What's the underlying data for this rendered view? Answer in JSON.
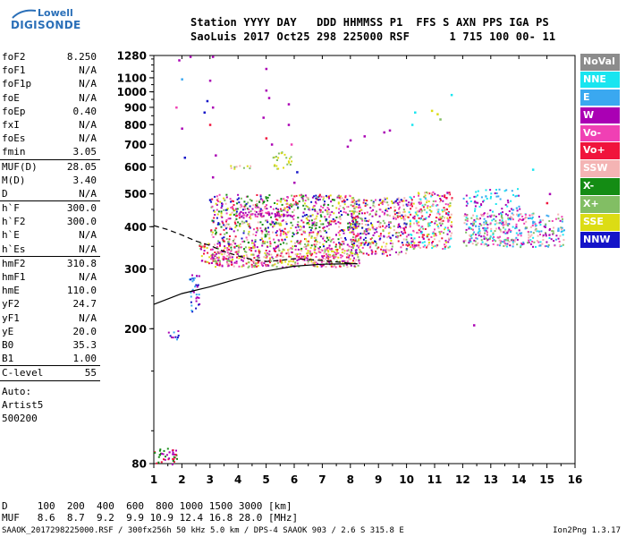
{
  "logo": {
    "line1": "Lowell",
    "line2": "DIGISONDE"
  },
  "header": {
    "line1": "Station YYYY DAY   DDD HHMMSS P1  FFS S AXN PPS IGA PS",
    "line2": "SaoLuis 2017 Oct25 298 225000 RSF      1 715 100 00- 11"
  },
  "params": [
    {
      "k": "foF2",
      "v": "8.250"
    },
    {
      "k": "foF1",
      "v": "N/A"
    },
    {
      "k": "foF1p",
      "v": "N/A"
    },
    {
      "k": "foE",
      "v": "N/A"
    },
    {
      "k": "foEp",
      "v": "0.40"
    },
    {
      "k": "fxI",
      "v": "N/A"
    },
    {
      "k": "foEs",
      "v": "N/A"
    },
    {
      "k": "fmin",
      "v": "3.05"
    },
    {
      "k": "MUF(D)",
      "v": "28.05",
      "sep": true
    },
    {
      "k": "M(D)",
      "v": "3.40"
    },
    {
      "k": "D",
      "v": "N/A"
    },
    {
      "k": "h`F",
      "v": "300.0",
      "sep": true
    },
    {
      "k": "h`F2",
      "v": "300.0"
    },
    {
      "k": "h`E",
      "v": "N/A"
    },
    {
      "k": "h`Es",
      "v": "N/A"
    },
    {
      "k": "hmF2",
      "v": "310.8",
      "sep": true
    },
    {
      "k": "hmF1",
      "v": "N/A"
    },
    {
      "k": "hmE",
      "v": "110.0"
    },
    {
      "k": "yF2",
      "v": "24.7"
    },
    {
      "k": "yF1",
      "v": "N/A"
    },
    {
      "k": "yE",
      "v": "20.0"
    },
    {
      "k": "B0",
      "v": "35.3"
    },
    {
      "k": "B1",
      "v": "1.00"
    },
    {
      "k": "C-level",
      "v": "55",
      "sep": true
    }
  ],
  "autoscaling": {
    "line1": "Auto:",
    "line2": "Artist5",
    "line3": "500200"
  },
  "legend": [
    {
      "label": "NoVal",
      "color": "#8c8c8c"
    },
    {
      "label": "NNE",
      "color": "#19e5f0"
    },
    {
      "label": "E",
      "color": "#3aa8f0"
    },
    {
      "label": "W",
      "color": "#aa00b4"
    },
    {
      "label": "Vo-",
      "color": "#f040b4"
    },
    {
      "label": "Vo+",
      "color": "#f0143c"
    },
    {
      "label": "SSW",
      "color": "#f4b4b4"
    },
    {
      "label": "X-",
      "color": "#148c14"
    },
    {
      "label": "X+",
      "color": "#82be64"
    },
    {
      "label": "SSE",
      "color": "#dcdc14"
    },
    {
      "label": "NNW",
      "color": "#1414c8"
    }
  ],
  "muf_table": {
    "d_row": "D     100  200  400  600  800 1000 1500 3000 [km]",
    "muf_row": "MUF   8.6  8.7  9.2  9.9 10.9 12.4 16.8 28.0 [MHz]"
  },
  "footer": {
    "left": "SAAOK_2017298225000.RSF / 300fx256h 50 kHz 5.0 km / DPS-4 SAAOK 903 / 2.6 S 315.8 E",
    "right": "Ion2Png 1.3.17"
  },
  "chart_data": {
    "type": "scatter",
    "title": "",
    "xlabel": "",
    "ylabel": "",
    "xlim": [
      1,
      16
    ],
    "ylim": [
      80,
      1280
    ],
    "y_scale": "log",
    "x_ticks": [
      1,
      2,
      3,
      4,
      5,
      6,
      7,
      8,
      9,
      10,
      11,
      12,
      13,
      14,
      15,
      16
    ],
    "y_ticks": [
      80,
      200,
      300,
      400,
      500,
      600,
      700,
      800,
      900,
      1000,
      1100,
      1280
    ],
    "traces": [
      {
        "name": "",
        "style": "solid",
        "x": [
          1.0,
          2.0,
          3.0,
          4.0,
          5.0,
          6.0,
          7.0,
          8.0,
          8.25
        ],
        "y": [
          236,
          254,
          266,
          281,
          296,
          306,
          310,
          311,
          311
        ]
      },
      {
        "name": "",
        "style": "dashed",
        "x": [
          1.0,
          1.5,
          2.0,
          2.5,
          3.0,
          3.5,
          4.0,
          4.5,
          5.0,
          5.5,
          6.0,
          7.0,
          8.0,
          8.25
        ],
        "y": [
          403,
          392,
          378,
          363,
          352,
          338,
          328,
          320,
          316,
          318,
          322,
          318,
          312,
          311
        ]
      }
    ],
    "echo_clusters": [
      {
        "x": [
          1.0,
          1.8
        ],
        "y": [
          80,
          90
        ],
        "colors": [
          "#f0143c",
          "#aa00b4",
          "#148c14"
        ],
        "density": 0.5
      },
      {
        "x": [
          1.5,
          2.0
        ],
        "y": [
          185,
          200
        ],
        "colors": [
          "#3aa8f0",
          "#aa00b4",
          "#1414c8"
        ],
        "density": 0.3
      },
      {
        "x": [
          2.2,
          2.6
        ],
        "y": [
          225,
          290
        ],
        "colors": [
          "#1414c8",
          "#aa00b4",
          "#3aa8f0"
        ],
        "density": 0.4
      },
      {
        "x": [
          2.6,
          3.3
        ],
        "y": [
          310,
          360
        ],
        "colors": [
          "#f0143c",
          "#aa00b4",
          "#dcdc14",
          "#82be64"
        ],
        "density": 0.5
      },
      {
        "x": [
          3.0,
          8.3
        ],
        "y": [
          305,
          345
        ],
        "colors": [
          "#f0143c",
          "#f040b4",
          "#aa00b4",
          "#dcdc14",
          "#82be64",
          "#f4b4b4"
        ],
        "density": 0.75
      },
      {
        "x": [
          3.0,
          8.3
        ],
        "y": [
          345,
          500
        ],
        "colors": [
          "#aa00b4",
          "#f040b4",
          "#f0143c",
          "#1414c8",
          "#dcdc14",
          "#82be64",
          "#f4b4b4",
          "#148c14"
        ],
        "density": 0.5
      },
      {
        "x": [
          4.0,
          6.0
        ],
        "y": [
          430,
          445
        ],
        "colors": [
          "#aa00b4",
          "#f040b4"
        ],
        "density": 0.9
      },
      {
        "x": [
          3.7,
          4.5
        ],
        "y": [
          595,
          610
        ],
        "colors": [
          "#dcdc14",
          "#82be64",
          "#f4b4b4"
        ],
        "density": 0.6
      },
      {
        "x": [
          5.2,
          5.9
        ],
        "y": [
          595,
          670
        ],
        "colors": [
          "#dcdc14",
          "#82be64"
        ],
        "density": 0.35
      },
      {
        "x": [
          8.0,
          10.0
        ],
        "y": [
          330,
          490
        ],
        "colors": [
          "#f0143c",
          "#f040b4",
          "#aa00b4",
          "#dcdc14",
          "#82be64",
          "#f4b4b4",
          "#1414c8"
        ],
        "density": 0.55
      },
      {
        "x": [
          10.0,
          11.6
        ],
        "y": [
          345,
          510
        ],
        "colors": [
          "#f040b4",
          "#f0143c",
          "#dcdc14",
          "#82be64",
          "#aa00b4",
          "#19e5f0",
          "#f4b4b4"
        ],
        "density": 0.55
      },
      {
        "x": [
          12.0,
          15.6
        ],
        "y": [
          350,
          440
        ],
        "colors": [
          "#19e5f0",
          "#3aa8f0",
          "#f4b4b4",
          "#82be64",
          "#aa00b4",
          "#f040b4"
        ],
        "density": 0.55
      },
      {
        "x": [
          12.0,
          14.0
        ],
        "y": [
          440,
          520
        ],
        "colors": [
          "#19e5f0",
          "#3aa8f0",
          "#aa00b4"
        ],
        "density": 0.25
      }
    ],
    "sparse_points": [
      {
        "x": 1.9,
        "y": 1240,
        "color": "#aa00b4"
      },
      {
        "x": 2.3,
        "y": 1270,
        "color": "#aa00b4"
      },
      {
        "x": 2.0,
        "y": 1090,
        "color": "#3aa8f0"
      },
      {
        "x": 1.8,
        "y": 900,
        "color": "#f040b4"
      },
      {
        "x": 2.0,
        "y": 780,
        "color": "#aa00b4"
      },
      {
        "x": 2.1,
        "y": 640,
        "color": "#1414c8"
      },
      {
        "x": 3.1,
        "y": 1270,
        "color": "#aa00b4"
      },
      {
        "x": 3.0,
        "y": 1080,
        "color": "#aa00b4"
      },
      {
        "x": 2.9,
        "y": 940,
        "color": "#1414c8"
      },
      {
        "x": 3.1,
        "y": 900,
        "color": "#aa00b4"
      },
      {
        "x": 2.8,
        "y": 870,
        "color": "#1414c8"
      },
      {
        "x": 3.0,
        "y": 800,
        "color": "#f0143c"
      },
      {
        "x": 3.2,
        "y": 650,
        "color": "#aa00b4"
      },
      {
        "x": 3.1,
        "y": 560,
        "color": "#aa00b4"
      },
      {
        "x": 3.0,
        "y": 480,
        "color": "#1414c8"
      },
      {
        "x": 5.0,
        "y": 1170,
        "color": "#aa00b4"
      },
      {
        "x": 5.0,
        "y": 1010,
        "color": "#aa00b4"
      },
      {
        "x": 5.1,
        "y": 960,
        "color": "#aa00b4"
      },
      {
        "x": 4.9,
        "y": 840,
        "color": "#aa00b4"
      },
      {
        "x": 5.0,
        "y": 730,
        "color": "#f0143c"
      },
      {
        "x": 5.2,
        "y": 700,
        "color": "#aa00b4"
      },
      {
        "x": 5.8,
        "y": 920,
        "color": "#aa00b4"
      },
      {
        "x": 5.8,
        "y": 800,
        "color": "#aa00b4"
      },
      {
        "x": 5.9,
        "y": 700,
        "color": "#f040b4"
      },
      {
        "x": 6.1,
        "y": 580,
        "color": "#1414c8"
      },
      {
        "x": 6.0,
        "y": 540,
        "color": "#aa00b4"
      },
      {
        "x": 8.0,
        "y": 720,
        "color": "#aa00b4"
      },
      {
        "x": 7.9,
        "y": 690,
        "color": "#aa00b4"
      },
      {
        "x": 8.5,
        "y": 740,
        "color": "#aa00b4"
      },
      {
        "x": 9.2,
        "y": 760,
        "color": "#aa00b4"
      },
      {
        "x": 9.4,
        "y": 770,
        "color": "#aa00b4"
      },
      {
        "x": 10.2,
        "y": 800,
        "color": "#19e5f0"
      },
      {
        "x": 10.3,
        "y": 870,
        "color": "#19e5f0"
      },
      {
        "x": 10.9,
        "y": 880,
        "color": "#dcdc14"
      },
      {
        "x": 11.1,
        "y": 860,
        "color": "#dcdc14"
      },
      {
        "x": 11.2,
        "y": 830,
        "color": "#82be64"
      },
      {
        "x": 11.6,
        "y": 980,
        "color": "#19e5f0"
      },
      {
        "x": 12.4,
        "y": 205,
        "color": "#aa00b4"
      },
      {
        "x": 14.5,
        "y": 590,
        "color": "#19e5f0"
      },
      {
        "x": 15.1,
        "y": 500,
        "color": "#aa00b4"
      },
      {
        "x": 15.4,
        "y": 390,
        "color": "#3aa8f0"
      },
      {
        "x": 15.0,
        "y": 470,
        "color": "#f0143c"
      }
    ]
  }
}
